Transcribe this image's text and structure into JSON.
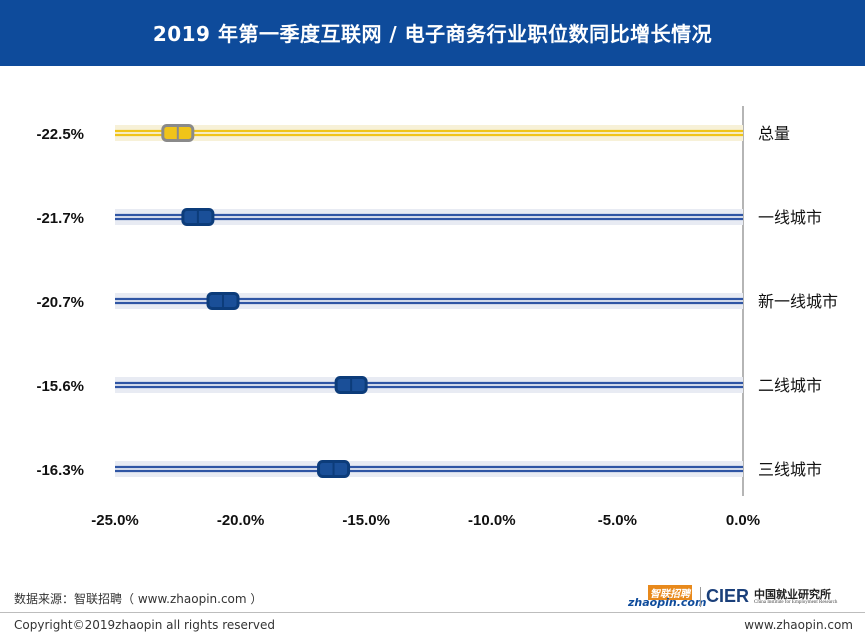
{
  "header": {
    "title": "2019 年第一季度互联网 / 电子商务行业职位数同比增长情况"
  },
  "chart_data": {
    "type": "bar",
    "orientation": "horizontal",
    "title": "2019 年第一季度互联网 / 电子商务行业职位数同比增长情况",
    "categories": [
      "总量",
      "一线城市",
      "新一线城市",
      "二线城市",
      "三线城市"
    ],
    "values": [
      -22.5,
      -21.7,
      -20.7,
      -15.6,
      -16.3
    ],
    "value_labels": [
      "-22.5%",
      "-21.7%",
      "-20.7%",
      "-15.6%",
      "-16.3%"
    ],
    "xlim": [
      -25.0,
      0.0
    ],
    "x_ticks": [
      "-25.0%",
      "-20.0%",
      "-15.0%",
      "-10.0%",
      "-5.0%",
      "0.0%"
    ],
    "grid": false,
    "colors": {
      "total": "#f0c419",
      "total_marker": "#8a8a8a",
      "city": "#2f55a4",
      "city_marker": "#1a4f98"
    }
  },
  "footer": {
    "source": "数据来源：智联招聘（ www.zhaopin.com ）",
    "copyright": "Copyright©2019zhaopin all rights reserved",
    "website": "www.zhaopin.com",
    "logo_zhaopin_top": "智联招聘",
    "logo_zhaopin_bottom": "zhaopin.com",
    "logo_cier": "CIER",
    "logo_cier_cn": "中国就业研究所",
    "logo_cier_en": "China Institute for Employment Research"
  }
}
